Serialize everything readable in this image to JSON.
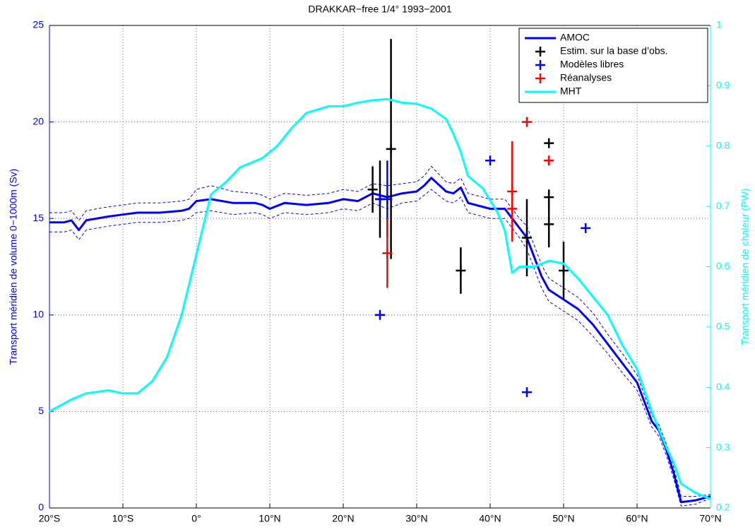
{
  "chart_data": {
    "type": "line",
    "title": "DRAKKAR−free 1/4° 1993−2001",
    "ylabel": "Transport méridien de volume 0−1000m (Sv)",
    "y2label": "Transport méridien de chaleur (PW)",
    "xlim": [
      -20,
      70
    ],
    "xticks": [
      {
        "value": -20,
        "label": "20°S"
      },
      {
        "value": -10,
        "label": "10°S"
      },
      {
        "value": 0,
        "label": "0°"
      },
      {
        "value": 10,
        "label": "10°N"
      },
      {
        "value": 20,
        "label": "20°N"
      },
      {
        "value": 30,
        "label": "30°N"
      },
      {
        "value": 40,
        "label": "40°N"
      },
      {
        "value": 50,
        "label": "50°N"
      },
      {
        "value": 60,
        "label": "60°N"
      },
      {
        "value": 70,
        "label": "70°N"
      }
    ],
    "ylim": [
      0,
      25
    ],
    "yticks": [
      0,
      5,
      10,
      15,
      20,
      25
    ],
    "y2lim": [
      0.2,
      1
    ],
    "y2ticks": [
      0.2,
      0.3,
      0.4,
      0.5,
      0.6,
      0.7,
      0.8,
      0.9,
      1
    ],
    "grid": true,
    "legend": "northeast",
    "series": [
      {
        "name": "AMOC",
        "type": "line",
        "color": "#0000ff",
        "x": [
          -20,
          -18,
          -17,
          -16,
          -15,
          -12,
          -10,
          -8,
          -5,
          -2,
          -1,
          0,
          2,
          5,
          8,
          9,
          10,
          12,
          15,
          18,
          20,
          22,
          24,
          26,
          28,
          30,
          31,
          32,
          34,
          35,
          36,
          37,
          40,
          42,
          43,
          44,
          45,
          46,
          47,
          48,
          50,
          52,
          54,
          56,
          58,
          60,
          62,
          63,
          64,
          65,
          66,
          68,
          70
        ],
        "values": [
          14.8,
          14.8,
          14.9,
          14.4,
          14.9,
          15.1,
          15.2,
          15.3,
          15.3,
          15.4,
          15.5,
          15.9,
          16.0,
          15.8,
          15.8,
          15.7,
          15.5,
          15.8,
          15.7,
          15.8,
          16.0,
          15.9,
          16.3,
          16.1,
          16.3,
          16.4,
          16.7,
          17.1,
          16.4,
          16.3,
          16.6,
          15.8,
          15.5,
          15.5,
          15.0,
          14.5,
          14.0,
          13.0,
          12.0,
          11.3,
          10.8,
          10.3,
          9.5,
          8.5,
          7.5,
          6.5,
          4.5,
          4.0,
          3.0,
          1.8,
          0.3,
          0.4,
          0.6
        ]
      },
      {
        "type": "line",
        "dashed": true,
        "color": "#0000ff",
        "x": [
          -20,
          -18,
          -17,
          -16,
          -15,
          -12,
          -10,
          -8,
          -5,
          -2,
          -1,
          0,
          2,
          5,
          8,
          9,
          10,
          12,
          15,
          18,
          20,
          22,
          24,
          26,
          28,
          30,
          31,
          32,
          34,
          35,
          36,
          37,
          40,
          42,
          43,
          44,
          45,
          46,
          47,
          48,
          50,
          52,
          54,
          56,
          58,
          60,
          62,
          63,
          64,
          65,
          66,
          68,
          70
        ],
        "values": [
          15.3,
          15.3,
          15.4,
          14.9,
          15.4,
          15.6,
          15.7,
          15.8,
          15.8,
          15.9,
          16.0,
          16.5,
          16.7,
          16.4,
          16.3,
          16.2,
          16.0,
          16.3,
          16.2,
          16.3,
          16.5,
          16.4,
          16.8,
          16.7,
          16.8,
          16.9,
          17.2,
          17.7,
          16.9,
          16.8,
          17.1,
          16.3,
          16.0,
          16.0,
          15.5,
          15.0,
          14.6,
          13.6,
          12.6,
          11.9,
          11.4,
          10.9,
          10.1,
          9.0,
          8.0,
          6.9,
          4.8,
          4.3,
          3.3,
          2.1,
          0.6,
          0.6,
          0.7
        ]
      },
      {
        "type": "line",
        "dashed": true,
        "color": "#0000ff",
        "x": [
          -20,
          -18,
          -17,
          -16,
          -15,
          -12,
          -10,
          -8,
          -5,
          -2,
          -1,
          0,
          2,
          5,
          8,
          9,
          10,
          12,
          15,
          18,
          20,
          22,
          24,
          26,
          28,
          30,
          31,
          32,
          34,
          35,
          36,
          37,
          40,
          42,
          43,
          44,
          45,
          46,
          47,
          48,
          50,
          52,
          54,
          56,
          58,
          60,
          62,
          63,
          64,
          65,
          66,
          68,
          70
        ],
        "values": [
          14.3,
          14.3,
          14.4,
          13.9,
          14.4,
          14.6,
          14.7,
          14.8,
          14.8,
          14.9,
          15.0,
          15.3,
          15.4,
          15.2,
          15.3,
          15.2,
          15.0,
          15.3,
          15.2,
          15.3,
          15.5,
          15.4,
          15.8,
          15.5,
          15.8,
          15.9,
          16.2,
          16.5,
          15.9,
          15.8,
          16.1,
          15.3,
          15.0,
          15.0,
          14.5,
          14.0,
          13.4,
          12.4,
          11.4,
          10.7,
          10.2,
          9.7,
          8.9,
          8.0,
          7.0,
          6.1,
          4.2,
          3.7,
          2.7,
          1.5,
          0.1,
          0.2,
          0.5
        ]
      },
      {
        "name": "Estim. sur la base d’obs.",
        "type": "errorbar",
        "color": "#000000",
        "x": [
          24,
          25,
          26.5,
          36,
          45,
          48,
          48,
          48,
          50
        ],
        "values": [
          16.5,
          16.0,
          18.6,
          12.3,
          14.0,
          18.9,
          16.1,
          14.7,
          12.3
        ],
        "errors": [
          1.2,
          2.0,
          5.7,
          1.2,
          2.0,
          0,
          0.4,
          1.2,
          1.5
        ]
      },
      {
        "name": "Modèles libres",
        "type": "errorbar",
        "color": "#0000ff",
        "x": [
          25,
          26,
          25,
          40,
          45,
          53
        ],
        "values": [
          16.0,
          16.0,
          10.0,
          18.0,
          6.0,
          14.5
        ],
        "errors": [
          0,
          2.0,
          0,
          0,
          0,
          0
        ]
      },
      {
        "name": "Réanalyses",
        "type": "errorbar",
        "color": "#ff0000",
        "x": [
          26,
          43,
          43,
          45,
          48
        ],
        "values": [
          13.2,
          16.4,
          15.5,
          20.0,
          18.0
        ],
        "errors": [
          1.8,
          2.6,
          0,
          0,
          0
        ]
      },
      {
        "name": "MHT",
        "type": "line",
        "axis": "y2",
        "color": "#00ffff",
        "x": [
          -20,
          -17,
          -15,
          -12,
          -10,
          -8,
          -6,
          -4,
          -2,
          0,
          1,
          2,
          4,
          6,
          9,
          11,
          13,
          15,
          18,
          20,
          22,
          24,
          26,
          28,
          30,
          32,
          34,
          35,
          36,
          37,
          39,
          41,
          42,
          43,
          44,
          46,
          48,
          50,
          52,
          54,
          56,
          58,
          60,
          62,
          64,
          65,
          66,
          68,
          70
        ],
        "values": [
          0.36,
          0.38,
          0.39,
          0.395,
          0.39,
          0.39,
          0.41,
          0.45,
          0.52,
          0.62,
          0.67,
          0.72,
          0.74,
          0.765,
          0.78,
          0.8,
          0.83,
          0.855,
          0.866,
          0.866,
          0.872,
          0.876,
          0.878,
          0.872,
          0.87,
          0.862,
          0.845,
          0.82,
          0.79,
          0.75,
          0.73,
          0.69,
          0.66,
          0.59,
          0.6,
          0.6,
          0.61,
          0.605,
          0.58,
          0.55,
          0.52,
          0.47,
          0.43,
          0.36,
          0.3,
          0.275,
          0.24,
          0.225,
          0.215
        ]
      }
    ]
  }
}
